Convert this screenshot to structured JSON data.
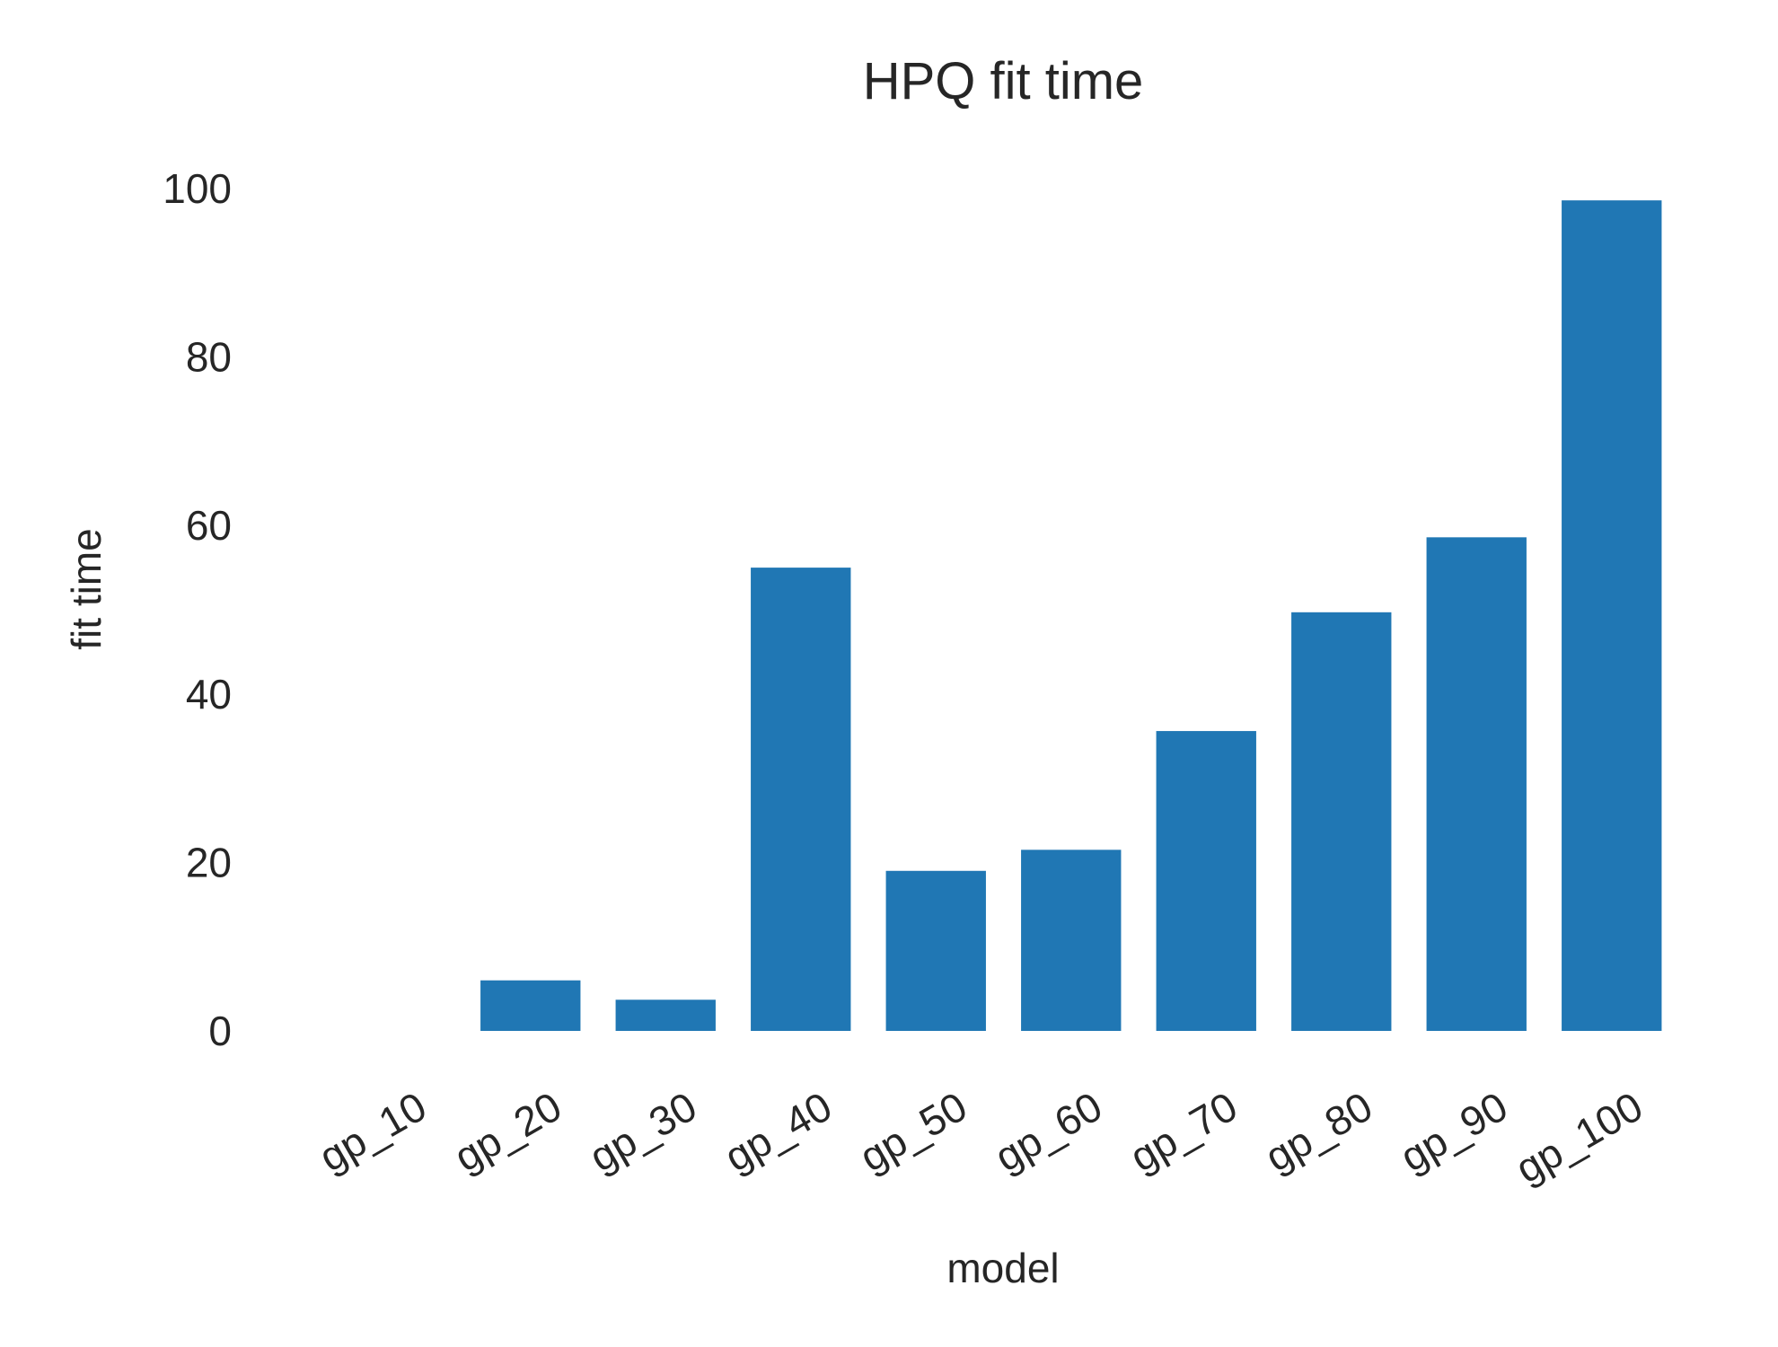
{
  "chart_data": {
    "type": "bar",
    "title": "HPQ fit time",
    "xlabel": "model",
    "ylabel": "fit time",
    "categories": [
      "gp_10",
      "gp_20",
      "gp_30",
      "gp_40",
      "gp_50",
      "gp_60",
      "gp_70",
      "gp_80",
      "gp_90",
      "gp_100"
    ],
    "values": [
      0,
      6,
      3.7,
      55,
      19,
      21.5,
      35.6,
      49.7,
      58.6,
      98.6
    ],
    "yticks": [
      0,
      20,
      40,
      60,
      80,
      100
    ],
    "ylim": [
      0,
      100
    ],
    "grid": false,
    "legend": "none",
    "bar_color": "#2077b4"
  }
}
